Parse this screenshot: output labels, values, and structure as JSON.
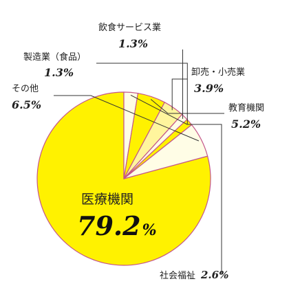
{
  "chart_data": {
    "type": "pie",
    "slices": [
      {
        "label": "医療機関",
        "value": 79.2,
        "display": "79.2",
        "unit": "%",
        "color": "#fff200"
      },
      {
        "label": "社会福祉",
        "value": 2.6,
        "display": "2.6",
        "unit": "%",
        "color": "#fffde6"
      },
      {
        "label": "教育機関",
        "value": 5.2,
        "display": "5.2",
        "unit": "%",
        "color": "#fff200"
      },
      {
        "label": "卸売・小売業",
        "value": 3.9,
        "display": "3.9",
        "unit": "%",
        "color": "#fff59d"
      },
      {
        "label": "飲食サービス業",
        "value": 1.3,
        "display": "1.3",
        "unit": "%",
        "color": "#fffde6"
      },
      {
        "label": "製造業（食品）",
        "value": 1.3,
        "display": "1.3",
        "unit": "%",
        "color": "#fff200"
      },
      {
        "label": "その他",
        "value": 6.5,
        "display": "6.5",
        "unit": "%",
        "color": "#fffde6"
      }
    ],
    "edge_color": "#c4568a"
  }
}
